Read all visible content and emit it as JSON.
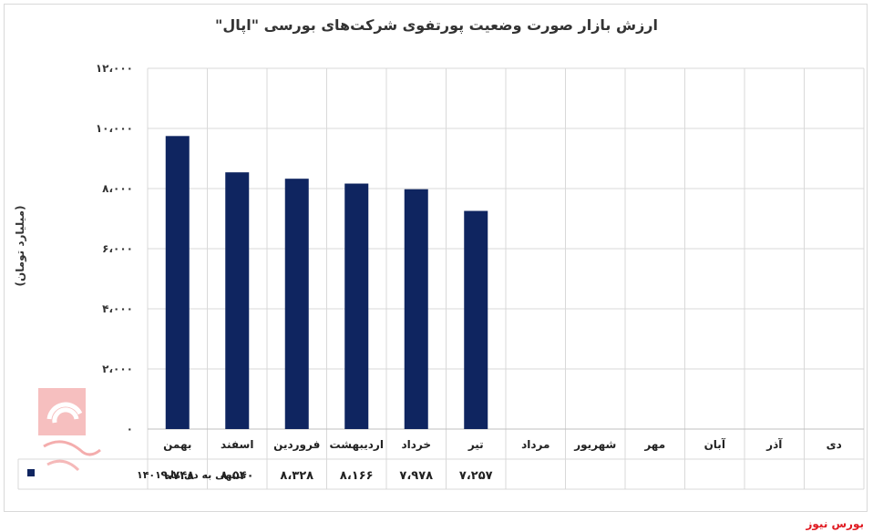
{
  "chart_data": {
    "type": "bar",
    "title": "ارزش بازار صورت وضعیت پورتفوی شرکت‌های بورسی \"اپال\"",
    "ylabel": "(میلیارد تومان)",
    "ylim": [
      0,
      12000
    ],
    "yticks": [
      "۱۲،۰۰۰",
      "۱۰،۰۰۰",
      "۸،۰۰۰",
      "۶،۰۰۰",
      "۴،۰۰۰",
      "۲،۰۰۰",
      "۰"
    ],
    "ytick_values": [
      12000,
      10000,
      8000,
      6000,
      4000,
      2000,
      0
    ],
    "categories": [
      "بهمن",
      "اسفند",
      "فروردین",
      "اردیبهشت",
      "خرداد",
      "تیر",
      "مرداد",
      "شهریور",
      "مهر",
      "آبان",
      "آذر",
      "دی"
    ],
    "series": [
      {
        "name": "منتهی به دی ماه ۱۴۰۱",
        "values": [
          9748,
          8540,
          8328,
          8166,
          7978,
          7257,
          null,
          null,
          null,
          null,
          null,
          null
        ],
        "labels": [
          "۹،۷۴۸",
          "۸،۵۴۰",
          "۸،۳۲۸",
          "۸،۱۶۶",
          "۷،۹۷۸",
          "۷،۲۵۷",
          "",
          "",
          "",
          "",
          "",
          ""
        ]
      }
    ],
    "colors": {
      "bar": "#0f2560",
      "grid": "#d9d9d9",
      "axis": "#bfbfbf"
    },
    "grid": true,
    "legend": "data-table-left"
  },
  "brand": "بورس نیوز",
  "watermark_text": "بورس نیوز"
}
